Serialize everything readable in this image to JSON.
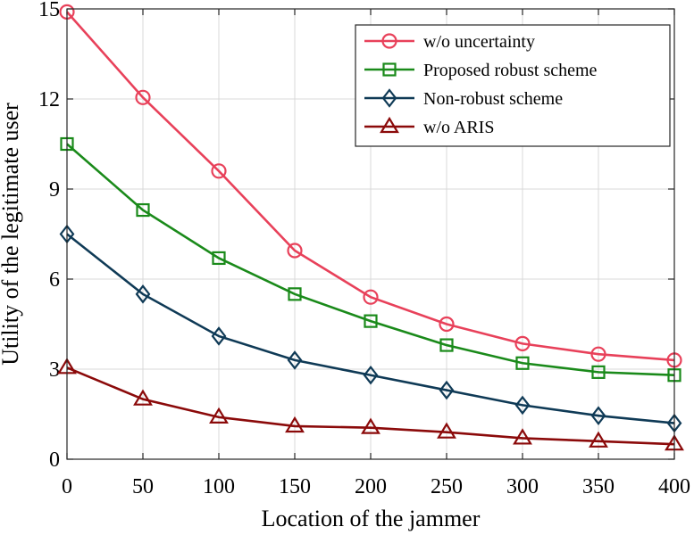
{
  "chart_data": {
    "type": "line",
    "title": "",
    "xlabel": "Location of the jammer",
    "ylabel": "Utility of the legitimate user",
    "xlim": [
      0,
      400
    ],
    "ylim": [
      0,
      15
    ],
    "xticks": [
      0,
      50,
      100,
      150,
      200,
      250,
      300,
      350,
      400
    ],
    "yticks": [
      0,
      3,
      6,
      9,
      12,
      15
    ],
    "grid": true,
    "legend_position": "top-right",
    "x": [
      0,
      50,
      100,
      150,
      200,
      250,
      300,
      350,
      400
    ],
    "series": [
      {
        "name": "w/o uncertainty",
        "color": "#e8415a",
        "marker": "circle",
        "values": [
          14.9,
          12.05,
          9.6,
          6.95,
          5.4,
          4.5,
          3.85,
          3.5,
          3.3
        ]
      },
      {
        "name": "Proposed robust scheme",
        "color": "#1a8a1a",
        "marker": "square",
        "values": [
          10.5,
          8.3,
          6.7,
          5.5,
          4.6,
          3.8,
          3.2,
          2.9,
          2.8
        ]
      },
      {
        "name": "Non-robust scheme",
        "color": "#0f3a56",
        "marker": "diamond",
        "values": [
          7.5,
          5.5,
          4.1,
          3.3,
          2.8,
          2.3,
          1.8,
          1.45,
          1.2
        ]
      },
      {
        "name": "w/o ARIS",
        "color": "#8b0a0a",
        "marker": "triangle",
        "values": [
          3.05,
          2.0,
          1.4,
          1.1,
          1.05,
          0.9,
          0.7,
          0.6,
          0.5
        ]
      }
    ]
  }
}
